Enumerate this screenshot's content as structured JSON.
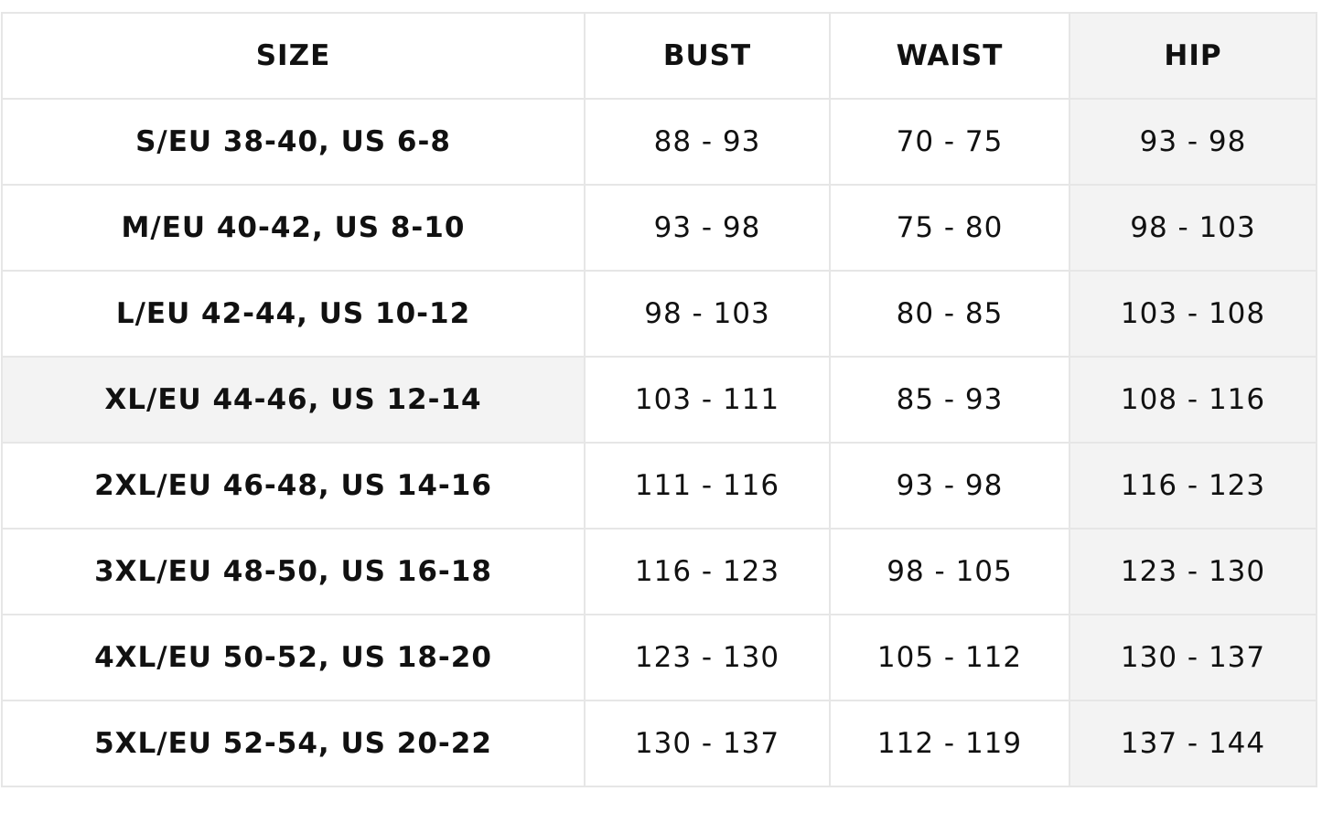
{
  "headers": [
    "SIZE",
    "BUST",
    "WAIST",
    "HIP"
  ],
  "rows": [
    {
      "size": "S/EU 38-40, US 6-8",
      "bust": "88 - 93",
      "waist": "70 - 75",
      "hip": "93 - 98"
    },
    {
      "size": "M/EU 40-42, US 8-10",
      "bust": "93 - 98",
      "waist": "75 - 80",
      "hip": "98 - 103"
    },
    {
      "size": "L/EU 42-44, US 10-12",
      "bust": "98 - 103",
      "waist": "80 - 85",
      "hip": "103 - 108"
    },
    {
      "size": "XL/EU 44-46, US 12-14",
      "bust": "103 - 111",
      "waist": "85 - 93",
      "hip": "108 - 116"
    },
    {
      "size": "2XL/EU 46-48, US 14-16",
      "bust": "111 - 116",
      "waist": "93 - 98",
      "hip": "116 - 123"
    },
    {
      "size": "3XL/EU 48-50, US 16-18",
      "bust": "116 - 123",
      "waist": "98 - 105",
      "hip": "123 - 130"
    },
    {
      "size": "4XL/EU 50-52, US 18-20",
      "bust": "123 - 130",
      "waist": "105 - 112",
      "hip": "130 - 137"
    },
    {
      "size": "5XL/EU 52-54, US 20-22",
      "bust": "130 - 137",
      "waist": "112 - 119",
      "hip": "137 - 144"
    }
  ],
  "colors": {
    "border": "#e6e6e6",
    "shade": "#f3f3f3",
    "text": "#111111"
  }
}
